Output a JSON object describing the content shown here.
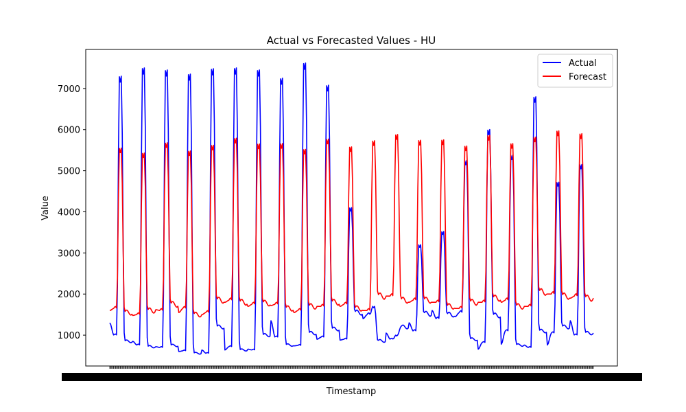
{
  "chart_data": {
    "type": "line",
    "title": "Actual vs Forecasted Values - HU",
    "xlabel": "Timestamp",
    "ylabel": "Value",
    "ylim": [
      250,
      7950
    ],
    "yticks": [
      1000,
      2000,
      3000,
      4000,
      5000,
      6000,
      7000
    ],
    "legend_position": "top-right",
    "grid": false,
    "x_tick_labels_overlapping": true,
    "series": [
      {
        "name": "Actual",
        "color": "#0000ff",
        "days": [
          {
            "base": 1000,
            "peak": 7300,
            "pre": 1300,
            "post": 850
          },
          {
            "base": 760,
            "peak": 7500,
            "pre": 850,
            "post": 720
          },
          {
            "base": 700,
            "peak": 7450,
            "pre": 720,
            "post": 750
          },
          {
            "base": 620,
            "peak": 7350,
            "pre": 600,
            "post": 560
          },
          {
            "base": 560,
            "peak": 7480,
            "pre": 640,
            "post": 1200
          },
          {
            "base": 720,
            "peak": 7500,
            "pre": 640,
            "post": 640
          },
          {
            "base": 640,
            "peak": 7450,
            "pre": 660,
            "post": 1000
          },
          {
            "base": 950,
            "peak": 7250,
            "pre": 1350,
            "post": 760
          },
          {
            "base": 750,
            "peak": 7620,
            "pre": 740,
            "post": 1050
          },
          {
            "base": 950,
            "peak": 7080,
            "pre": 900,
            "post": 1150
          },
          {
            "base": 900,
            "peak": 4100,
            "pre": 880,
            "post": 1550
          },
          {
            "base": 1500,
            "peak": 1700,
            "pre": 1400,
            "post": 860
          },
          {
            "base": 900,
            "peak": 1000,
            "pre": 1050,
            "post": 1200
          },
          {
            "base": 1100,
            "peak": 3200,
            "pre": 1300,
            "post": 1520
          },
          {
            "base": 1400,
            "peak": 3520,
            "pre": 1600,
            "post": 1500
          },
          {
            "base": 1550,
            "peak": 5250,
            "pre": 1450,
            "post": 900
          },
          {
            "base": 820,
            "peak": 6000,
            "pre": 660,
            "post": 1480
          },
          {
            "base": 1100,
            "peak": 5380,
            "pre": 780,
            "post": 760
          },
          {
            "base": 700,
            "peak": 6800,
            "pre": 760,
            "post": 1100
          },
          {
            "base": 1050,
            "peak": 4720,
            "pre": 760,
            "post": 1200
          },
          {
            "base": 1000,
            "peak": 5150,
            "pre": 1350,
            "post": 1050
          }
        ]
      },
      {
        "name": "Forecast",
        "color": "#ff0000",
        "days": [
          {
            "base": 1650,
            "peak": 5550,
            "pre": 1600,
            "post": 1550
          },
          {
            "base": 1500,
            "peak": 5430,
            "pre": 1480,
            "post": 1600
          },
          {
            "base": 1600,
            "peak": 5680,
            "pre": 1620,
            "post": 1750
          },
          {
            "base": 1650,
            "peak": 5480,
            "pre": 1550,
            "post": 1500
          },
          {
            "base": 1550,
            "peak": 5620,
            "pre": 1500,
            "post": 1850
          },
          {
            "base": 1850,
            "peak": 5790,
            "pre": 1800,
            "post": 1800
          },
          {
            "base": 1750,
            "peak": 5650,
            "pre": 1700,
            "post": 1780
          },
          {
            "base": 1750,
            "peak": 5660,
            "pre": 1720,
            "post": 1650
          },
          {
            "base": 1600,
            "peak": 5520,
            "pre": 1550,
            "post": 1700
          },
          {
            "base": 1700,
            "peak": 5770,
            "pre": 1700,
            "post": 1800
          },
          {
            "base": 1750,
            "peak": 5580,
            "pre": 1700,
            "post": 1650
          },
          {
            "base": 1600,
            "peak": 5730,
            "pre": 1600,
            "post": 1950
          },
          {
            "base": 1950,
            "peak": 5880,
            "pre": 1950,
            "post": 1850
          },
          {
            "base": 1850,
            "peak": 5740,
            "pre": 1800,
            "post": 1850
          },
          {
            "base": 1800,
            "peak": 5750,
            "pre": 1800,
            "post": 1700
          },
          {
            "base": 1650,
            "peak": 5600,
            "pre": 1650,
            "post": 1800
          },
          {
            "base": 1800,
            "peak": 5860,
            "pre": 1800,
            "post": 1900
          },
          {
            "base": 1850,
            "peak": 5660,
            "pre": 1800,
            "post": 1700
          },
          {
            "base": 1700,
            "peak": 5820,
            "pre": 1700,
            "post": 2050
          },
          {
            "base": 2000,
            "peak": 5970,
            "pre": 2000,
            "post": 1950
          },
          {
            "base": 1950,
            "peak": 5900,
            "pre": 1900,
            "post": 1900
          }
        ]
      }
    ]
  }
}
